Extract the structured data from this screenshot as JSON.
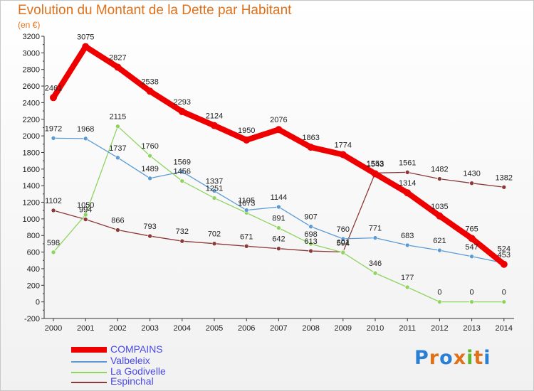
{
  "title": "Evolution du Montant de la Dette par Habitant",
  "subtitle": "(en €)",
  "logo": [
    "P",
    "r",
    "o",
    "x",
    "i",
    "t",
    "i"
  ],
  "logo_colors": [
    "#2a7fd4",
    "#e0711b",
    "#2a7fd4",
    "#e0711b",
    "#5bb82e",
    "#e0711b",
    "#2a7fd4"
  ],
  "chart_data": {
    "type": "line",
    "x": [
      "2000",
      "2001",
      "2002",
      "2003",
      "2004",
      "2005",
      "2006",
      "2007",
      "2008",
      "2009",
      "2010",
      "2011",
      "2012",
      "2013",
      "2014"
    ],
    "yticks": [
      "-200",
      "0",
      "200",
      "400",
      "600",
      "800",
      "1000",
      "1200",
      "1400",
      "1600",
      "1800",
      "2000",
      "2200",
      "2400",
      "2600",
      "2800",
      "3000",
      "3200"
    ],
    "ylim": [
      -200,
      3200
    ],
    "grid": false,
    "legend": "bottom-left",
    "series": [
      {
        "name": "COMPAINS",
        "color": "#ee0000",
        "values": [
          2461,
          3075,
          2827,
          2538,
          2293,
          2124,
          1950,
          2076,
          1863,
          1774,
          1543,
          1314,
          1035,
          765,
          453
        ],
        "labels": [
          "2461",
          "3075",
          "2827",
          "2538",
          "2293",
          "2124",
          "1950",
          "2076",
          "1863",
          "1774",
          "1543",
          "1314",
          "1035",
          "765",
          "453"
        ]
      },
      {
        "name": "Valbeleix",
        "color": "#5b9bd5",
        "values": [
          1972,
          1968,
          1737,
          1489,
          1569,
          1337,
          1105,
          1144,
          907,
          760,
          771,
          683,
          621,
          547,
          468
        ],
        "labels": [
          "1972",
          "1968",
          "1737",
          "1489",
          "1569",
          "1337",
          "1105",
          "1144",
          "907",
          "760",
          "771",
          "683",
          "621",
          "547",
          ""
        ]
      },
      {
        "name": "La Godivelle",
        "color": "#8fd460",
        "values": [
          598,
          1050,
          2115,
          1760,
          1456,
          1251,
          1073,
          891,
          698,
          594,
          346,
          177,
          0,
          0,
          0
        ],
        "labels": [
          "598",
          "1050",
          "2115",
          "1760",
          "1456",
          "1251",
          "1073",
          "891",
          "698",
          "594",
          "346",
          "177",
          "0",
          "0",
          "0"
        ]
      },
      {
        "name": "Espinchal",
        "color": "#8b3a3a",
        "values": [
          1102,
          994,
          866,
          793,
          732,
          702,
          671,
          642,
          613,
          601,
          1553,
          1561,
          1482,
          1430,
          1382
        ],
        "labels": [
          "1102",
          "994",
          "866",
          "793",
          "732",
          "702",
          "671",
          "642",
          "613",
          "601",
          "1553",
          "1561",
          "1482",
          "1430",
          "1382"
        ]
      }
    ],
    "legend_labels": [
      "COMPAINS",
      "Valbeleix",
      "La Godivelle",
      "Espinchal"
    ],
    "extra_labels": [
      "524"
    ]
  }
}
